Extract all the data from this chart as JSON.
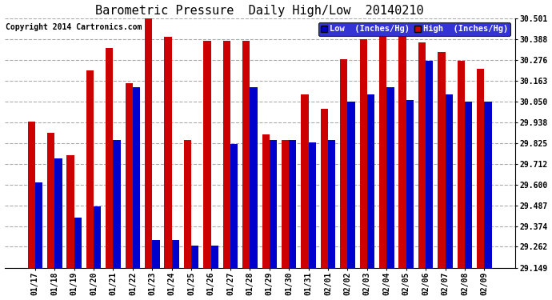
{
  "title": "Barometric Pressure  Daily High/Low  20140210",
  "copyright": "Copyright 2014 Cartronics.com",
  "legend_low": "Low  (Inches/Hg)",
  "legend_high": "High  (Inches/Hg)",
  "dates": [
    "01/17",
    "01/18",
    "01/19",
    "01/20",
    "01/21",
    "01/22",
    "01/23",
    "01/24",
    "01/25",
    "01/26",
    "01/27",
    "01/28",
    "01/29",
    "01/30",
    "01/31",
    "02/01",
    "02/02",
    "02/03",
    "02/04",
    "02/05",
    "02/06",
    "02/07",
    "02/08",
    "02/09"
  ],
  "low_values": [
    29.61,
    29.74,
    29.42,
    29.48,
    29.84,
    30.13,
    29.3,
    29.3,
    29.27,
    29.27,
    29.82,
    30.13,
    29.84,
    29.84,
    29.83,
    29.84,
    30.05,
    30.09,
    30.13,
    30.06,
    30.27,
    30.09,
    30.05,
    30.05
  ],
  "high_values": [
    29.94,
    29.88,
    29.76,
    30.22,
    30.34,
    30.15,
    30.5,
    30.4,
    29.84,
    30.38,
    30.38,
    30.38,
    29.87,
    29.84,
    30.09,
    30.01,
    30.28,
    30.39,
    30.4,
    30.4,
    30.37,
    30.32,
    30.27,
    30.23
  ],
  "ylim_min": 29.149,
  "ylim_max": 30.501,
  "yticks": [
    29.149,
    29.262,
    29.374,
    29.487,
    29.6,
    29.712,
    29.825,
    29.938,
    30.05,
    30.163,
    30.276,
    30.388,
    30.501
  ],
  "bar_width": 0.38,
  "low_color": "#0000cc",
  "high_color": "#cc0000",
  "bg_color": "#ffffff",
  "grid_color": "#aaaaaa",
  "title_fontsize": 11,
  "copyright_fontsize": 7,
  "tick_fontsize": 7,
  "legend_fontsize": 7.5
}
